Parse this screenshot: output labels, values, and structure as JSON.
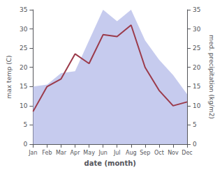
{
  "chart_data": {
    "type": "line",
    "xlabel": "date (month)",
    "ylabel": "max temp (C)",
    "y2label": "med. precipitation (kg/m2)",
    "categories": [
      "Jan",
      "Feb",
      "Mar",
      "Apr",
      "May",
      "Jun",
      "Jul",
      "Aug",
      "Sep",
      "Oct",
      "Nov",
      "Dec"
    ],
    "series": [
      {
        "type": "area",
        "axis": "y2",
        "color": "#b3b9e8",
        "values": [
          15.0,
          15.5,
          18.5,
          19.0,
          27.0,
          35.0,
          32.0,
          35.0,
          27.0,
          22.0,
          18.0,
          13.0
        ]
      },
      {
        "type": "line",
        "color": "#9b3a4a",
        "values": [
          8.5,
          15.0,
          17.0,
          23.5,
          21.0,
          28.5,
          28.0,
          31.0,
          20.0,
          14.0,
          10.0,
          11.0
        ]
      }
    ],
    "ylim": [
      0,
      35
    ],
    "yticks": [
      0,
      5,
      10,
      15,
      20,
      25,
      30,
      35
    ],
    "y2lim": [
      0,
      35
    ],
    "y2ticks": [
      0,
      5,
      10,
      15,
      20,
      25,
      30,
      35
    ],
    "grid": false
  }
}
